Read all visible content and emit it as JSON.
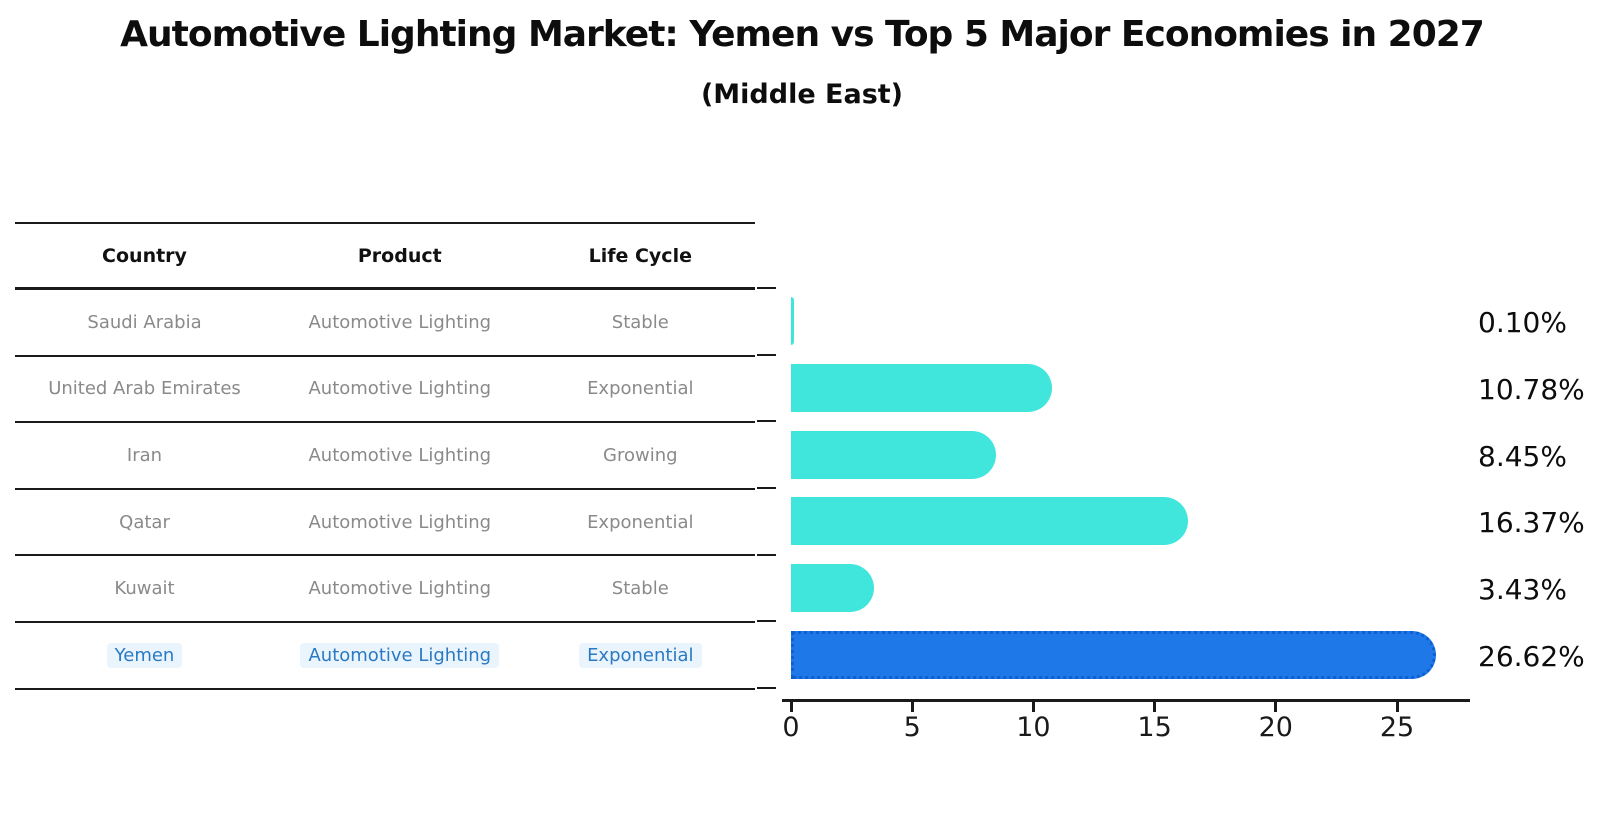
{
  "title": "Automotive Lighting Market: Yemen vs Top 5 Major Economies in 2027",
  "subtitle": "(Middle East)",
  "table": {
    "headers": [
      "Country",
      "Product",
      "Life Cycle"
    ],
    "rows": [
      {
        "country": "Saudi Arabia",
        "product": "Automotive Lighting",
        "life_cycle": "Stable",
        "highlighted": false
      },
      {
        "country": "United Arab Emirates",
        "product": "Automotive Lighting",
        "life_cycle": "Exponential",
        "highlighted": false
      },
      {
        "country": "Iran",
        "product": "Automotive Lighting",
        "life_cycle": "Growing",
        "highlighted": false
      },
      {
        "country": "Qatar",
        "product": "Automotive Lighting",
        "life_cycle": "Exponential",
        "highlighted": false
      },
      {
        "country": "Kuwait",
        "product": "Automotive Lighting",
        "life_cycle": "Stable",
        "highlighted": false
      },
      {
        "country": "Yemen",
        "product": "Automotive Lighting",
        "life_cycle": "Exponential",
        "highlighted": true
      }
    ]
  },
  "chart_data": {
    "type": "bar",
    "orientation": "horizontal",
    "title": "Automotive Lighting Market: Yemen vs Top 5 Major Economies in 2027",
    "subtitle": "(Middle East)",
    "categories": [
      "Saudi Arabia",
      "United Arab Emirates",
      "Iran",
      "Qatar",
      "Kuwait",
      "Yemen"
    ],
    "values": [
      0.1,
      10.78,
      8.45,
      16.37,
      3.43,
      26.62
    ],
    "value_labels": [
      "0.10%",
      "10.78%",
      "8.45%",
      "16.37%",
      "3.43%",
      "26.62%"
    ],
    "highlight_index": 5,
    "xlim": [
      0,
      28
    ],
    "x_ticks": [
      0,
      5,
      10,
      15,
      20,
      25
    ],
    "grid": false,
    "legend": false,
    "bar_color": "#40E6DC",
    "highlight_bar_color": "#1E78E8",
    "highlight_edge_color": "#0E5FD3"
  },
  "colors": {
    "row_text": "#8A8A8A",
    "highlight_text": "#2B79C2",
    "highlight_text_bg": "#E9F4FD",
    "axis": "#1A1A1A"
  }
}
